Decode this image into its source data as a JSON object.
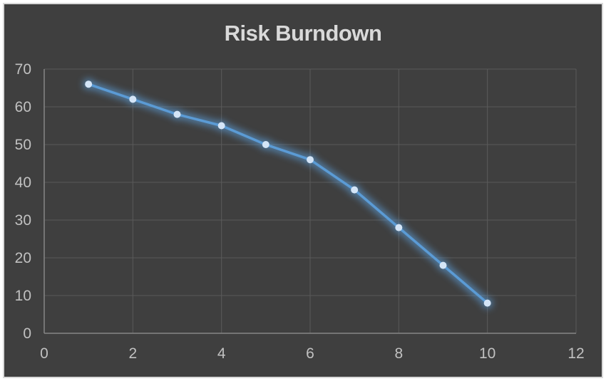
{
  "chart_data": {
    "type": "line",
    "title": "Risk Burndown",
    "x": [
      1,
      2,
      3,
      4,
      5,
      6,
      7,
      8,
      9,
      10
    ],
    "values": [
      66,
      62,
      58,
      55,
      50,
      46,
      38,
      28,
      18,
      8
    ],
    "xlim": [
      0,
      12
    ],
    "ylim": [
      0,
      70
    ],
    "x_tick_labels": [
      "0",
      "2",
      "4",
      "6",
      "8",
      "10",
      "12"
    ],
    "y_tick_labels": [
      "0",
      "10",
      "20",
      "30",
      "40",
      "50",
      "60",
      "70"
    ],
    "grid": true,
    "legend": "none",
    "marker_style": "circle",
    "line_glow": true,
    "colors": {
      "page_bg": "#FFFFFF",
      "frame_border": "#D9D9D9",
      "background": "#3F3F3F",
      "gridline": "#5A5A5A",
      "axis": "#858585",
      "tick_label": "#C1C1C1",
      "title": "#D9D9D9",
      "line": "#5B9BD5",
      "marker": "#D4E5F7"
    }
  }
}
